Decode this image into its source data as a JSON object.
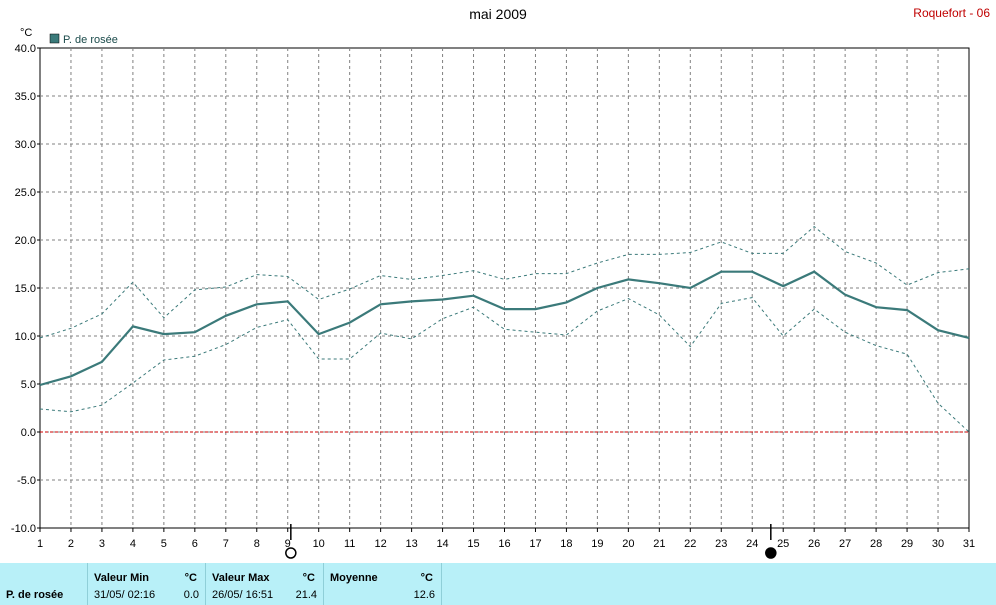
{
  "header": {
    "title": "mai 2009",
    "station": "Roquefort - 06"
  },
  "colors": {
    "series": "#3b7a7a",
    "envelope": "#3b7a7a",
    "zero_line": "#cc0000",
    "grid": "#808080",
    "panel_bg": "#b8f0f8",
    "station_text": "#c00000"
  },
  "chart_data": {
    "type": "line",
    "title": "mai 2009",
    "ylabel": "°C",
    "ylim": [
      -10,
      40
    ],
    "yticks": [
      "40.0",
      "35.0",
      "30.0",
      "25.0",
      "20.0",
      "15.0",
      "10.0",
      "5.0",
      "0.0",
      "-5.0",
      "-10.0"
    ],
    "x": [
      1,
      2,
      3,
      4,
      5,
      6,
      7,
      8,
      9,
      10,
      11,
      12,
      13,
      14,
      15,
      16,
      17,
      18,
      19,
      20,
      21,
      22,
      23,
      24,
      25,
      26,
      27,
      28,
      29,
      30,
      31
    ],
    "xticks": [
      "1",
      "2",
      "3",
      "4",
      "5",
      "6",
      "7",
      "8",
      "9",
      "10",
      "11",
      "12",
      "13",
      "14",
      "15",
      "16",
      "17",
      "18",
      "19",
      "20",
      "21",
      "22",
      "23",
      "24",
      "25",
      "26",
      "27",
      "28",
      "29",
      "30",
      "31"
    ],
    "legend": "top-left",
    "grid": true,
    "moon_phases": [
      {
        "x": 9.1,
        "phase": "full"
      },
      {
        "x": 24.6,
        "phase": "new"
      }
    ],
    "series": [
      {
        "name": "P. de rosée",
        "style": "solid",
        "values": [
          4.9,
          5.8,
          7.3,
          11.0,
          10.2,
          10.4,
          12.1,
          13.3,
          13.6,
          10.2,
          11.4,
          13.3,
          13.6,
          13.8,
          14.2,
          12.8,
          12.8,
          13.5,
          15.0,
          15.9,
          15.5,
          15.0,
          16.7,
          16.7,
          15.2,
          16.7,
          14.3,
          13.0,
          12.7,
          10.6,
          9.8
        ]
      },
      {
        "style": "dashed",
        "values": [
          9.8,
          10.8,
          12.3,
          15.6,
          11.9,
          14.8,
          15.1,
          16.4,
          16.2,
          13.8,
          14.9,
          16.3,
          15.9,
          16.3,
          16.8,
          15.9,
          16.5,
          16.5,
          17.6,
          18.5,
          18.5,
          18.7,
          19.8,
          18.6,
          18.6,
          21.4,
          18.8,
          17.6,
          15.3,
          16.6,
          17.0
        ]
      },
      {
        "style": "dashed",
        "values": [
          2.4,
          2.1,
          2.8,
          5.1,
          7.5,
          7.9,
          9.1,
          10.9,
          11.7,
          7.6,
          7.6,
          10.3,
          9.7,
          11.8,
          13.0,
          10.7,
          10.4,
          10.1,
          12.6,
          13.9,
          12.2,
          8.9,
          13.4,
          14.0,
          10.0,
          12.8,
          10.4,
          9.0,
          8.1,
          3.0,
          0.0
        ]
      }
    ]
  },
  "stats": {
    "row_label": "P. de rosée",
    "min": {
      "label": "Valeur Min",
      "unit": "°C",
      "date": "31/05/  02:16",
      "value": "0.0"
    },
    "max": {
      "label": "Valeur Max",
      "unit": "°C",
      "date": "26/05/  16:51",
      "value": "21.4"
    },
    "mean": {
      "label": "Moyenne",
      "unit": "°C",
      "value": "12.6"
    }
  }
}
